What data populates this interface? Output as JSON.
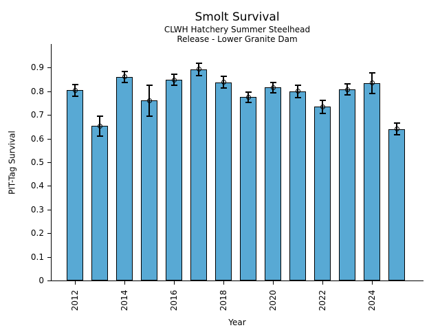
{
  "header": {
    "title": "Smolt Survival",
    "subtitle1": "CLWH Hatchery Summer Steelhead",
    "subtitle2": "Release - Lower Granite Dam"
  },
  "chart_data": {
    "type": "bar",
    "title": "Smolt Survival",
    "subtitle": [
      "CLWH Hatchery Summer Steelhead",
      "Release - Lower Granite Dam"
    ],
    "xlabel": "Year",
    "ylabel": "PIT-Tag Survival",
    "categories": [
      2012,
      2013,
      2014,
      2015,
      2016,
      2017,
      2018,
      2019,
      2020,
      2021,
      2022,
      2023,
      2024,
      2025
    ],
    "values": [
      0.805,
      0.653,
      0.861,
      0.761,
      0.848,
      0.893,
      0.838,
      0.776,
      0.816,
      0.8,
      0.735,
      0.808,
      0.835,
      0.641
    ],
    "error_bars": [
      0.025,
      0.043,
      0.024,
      0.066,
      0.023,
      0.027,
      0.025,
      0.022,
      0.022,
      0.026,
      0.028,
      0.023,
      0.044,
      0.024
    ],
    "ylim": [
      0,
      1.0
    ],
    "yticks": [
      0,
      0.1,
      0.2,
      0.3,
      0.4,
      0.5,
      0.6,
      0.7,
      0.8,
      0.9
    ],
    "ytick_labels": [
      "0",
      "0.1",
      "0.2",
      "0.3",
      "0.4",
      "0.5",
      "0.6",
      "0.7",
      "0.8",
      "0.9"
    ],
    "xticks": [
      2012,
      2014,
      2016,
      2018,
      2020,
      2022,
      2024
    ],
    "xtick_rotation_deg": 90,
    "grid": "off",
    "legend": "none",
    "marker": "open-circle",
    "bar_color": "#58A9D4",
    "bar_edge_color": "#000000",
    "error_color": "#000000",
    "text_color": "#000000",
    "background_color": "#FFFFFF"
  }
}
